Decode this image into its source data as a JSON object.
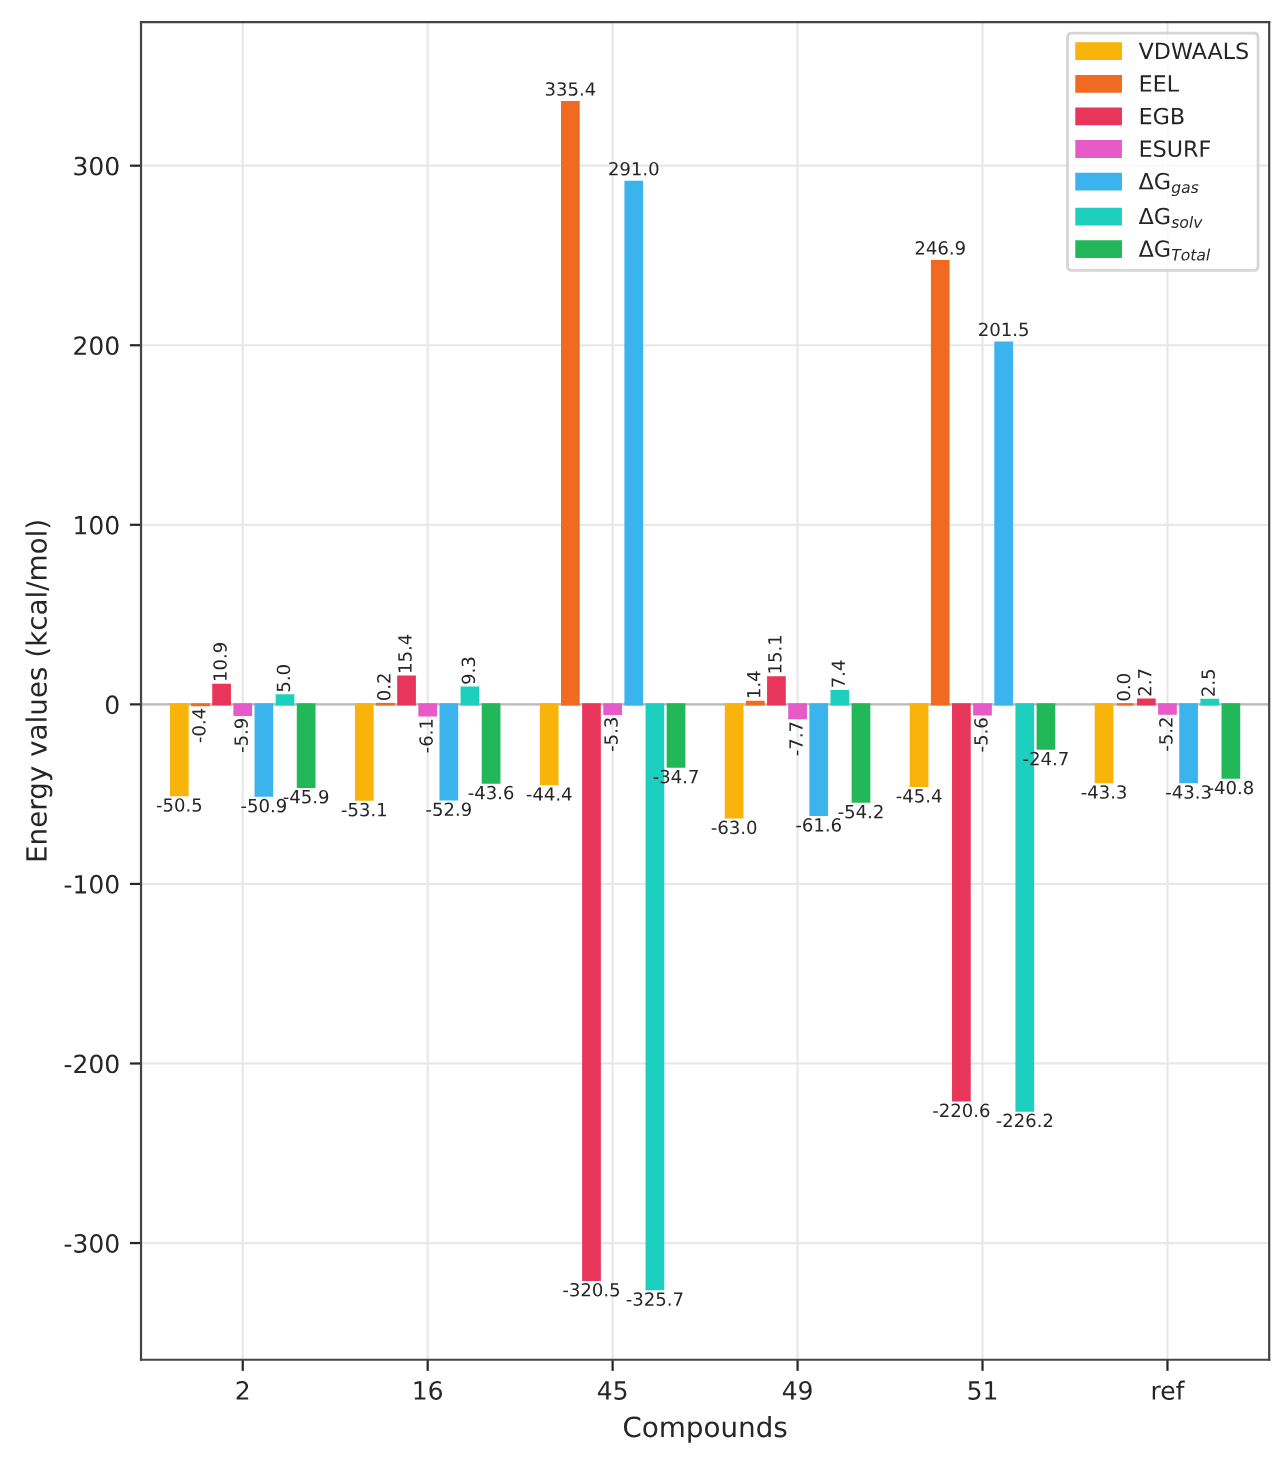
{
  "chart_data": {
    "type": "bar",
    "xlabel": "Compounds",
    "ylabel": "Energy values (kcal/mol)",
    "categories": [
      "2",
      "16",
      "45",
      "49",
      "51",
      "ref"
    ],
    "series": [
      {
        "name": "VDWAALS",
        "color": "#f9b40c",
        "values": [
          -50.5,
          -53.1,
          -44.4,
          -63.0,
          -45.4,
          -43.3
        ],
        "value_labels": [
          "-50.5",
          "-53.1",
          "-44.4",
          "-63.0",
          "-45.4",
          "-43.3"
        ]
      },
      {
        "name": "EEL",
        "color": "#f06a21",
        "values": [
          -0.4,
          0.2,
          335.4,
          1.4,
          246.9,
          0.0
        ],
        "value_labels": [
          "-0.4",
          "0.2",
          "335.4",
          "1.4",
          "246.9",
          "0.0"
        ]
      },
      {
        "name": "EGB",
        "color": "#e8365a",
        "values": [
          10.9,
          15.4,
          -320.5,
          15.1,
          -220.6,
          2.7
        ],
        "value_labels": [
          "10.9",
          "15.4",
          "-320.5",
          "15.1",
          "-220.6",
          "2.7"
        ]
      },
      {
        "name": "ESURF",
        "color": "#e65bc8",
        "values": [
          -5.9,
          -6.1,
          -5.3,
          -7.7,
          -5.6,
          -5.2
        ],
        "value_labels": [
          "-5.9",
          "-6.1",
          "-5.3",
          "-7.7",
          "-5.6",
          "-5.2"
        ]
      },
      {
        "name": "ΔG$_{gas}$",
        "color": "#3bb4ee",
        "values": [
          -50.9,
          -52.9,
          291.0,
          -61.6,
          201.5,
          -43.3
        ],
        "value_labels": [
          "-50.9",
          "-52.9",
          "291.0",
          "-61.6",
          "201.5",
          "-43.3"
        ]
      },
      {
        "name": "ΔG$_{solv}$",
        "color": "#1ccfbf",
        "values": [
          5.0,
          9.3,
          -325.7,
          7.4,
          -226.2,
          2.5
        ],
        "value_labels": [
          "5.0",
          "9.3",
          "-325.7",
          "7.4",
          "-226.2",
          "2.5"
        ]
      },
      {
        "name": "ΔG$_{Total}$",
        "color": "#22b85a",
        "values": [
          -45.9,
          -43.6,
          -34.7,
          -54.2,
          -24.7,
          -40.8
        ],
        "value_labels": [
          "-45.9",
          "-43.6",
          "-34.7",
          "-54.2",
          "-24.7",
          "-40.8"
        ]
      }
    ],
    "ylim": [
      -365,
      380
    ],
    "yticks": [
      -300,
      -200,
      -100,
      0,
      100,
      200,
      300
    ],
    "grid": true,
    "legend": "top right"
  }
}
